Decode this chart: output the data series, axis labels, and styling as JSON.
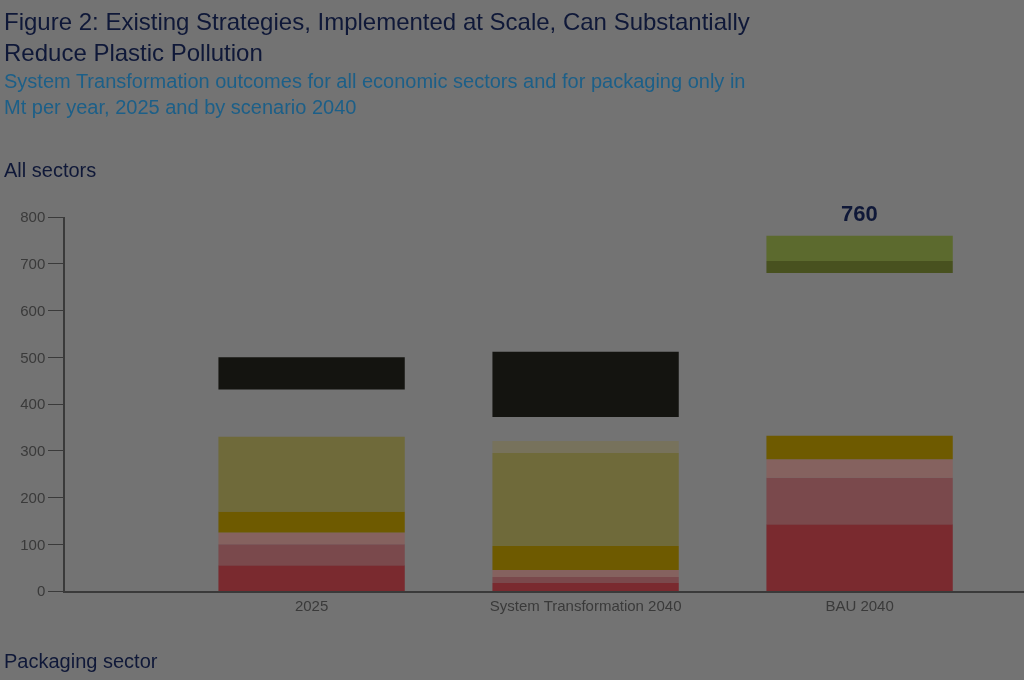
{
  "chart_data": {
    "type": "bar",
    "title": "Figure 2: Existing Strategies, Implemented at Scale, Can Substantially\nReduce Plastic Pollution",
    "subtitle": "System Transformation outcomes for all economic sectors and for packaging only in\nMt per year, 2025 and by scenario 2040",
    "categories": [
      "2025",
      "System Transformation 2040",
      "BAU 2040"
    ],
    "series": [
      {
        "color": "#7a2a2f",
        "values": [
          55,
          17,
          143
        ],
        "base": [
          0,
          0,
          0
        ]
      },
      {
        "color": "#7a494c",
        "values": [
          45,
          13,
          99
        ],
        "base": [
          55,
          17,
          143
        ]
      },
      {
        "color": "#85625f",
        "values": [
          25,
          15,
          40
        ],
        "base": [
          100,
          30,
          242
        ]
      },
      {
        "color": "#6e5a00",
        "values": [
          45,
          51,
          50
        ],
        "base": [
          125,
          45,
          282
        ]
      },
      {
        "color": "#6f6a3a",
        "values": [
          160,
          199,
          null
        ],
        "base": [
          170,
          96,
          null
        ]
      },
      {
        "color": "#77725c",
        "values": [
          null,
          26,
          null
        ],
        "base": [
          null,
          295,
          null
        ]
      },
      {
        "color": "#141410",
        "values": [
          69,
          140,
          null
        ],
        "base": [
          431,
          372,
          null
        ]
      },
      {
        "color": "#48511f",
        "values": [
          null,
          null,
          26
        ],
        "base": [
          null,
          null,
          680
        ]
      },
      {
        "color": "#5c6a2e",
        "values": [
          null,
          null,
          54
        ],
        "base": [
          null,
          null,
          706
        ]
      }
    ],
    "ylim": [
      0,
      800
    ],
    "yticks": [
      0,
      100,
      200,
      300,
      400,
      500,
      600,
      700,
      800
    ],
    "grid": false,
    "annotations": [
      "All sectors",
      {
        "text": "760",
        "x": "BAU 2040",
        "y": 760
      },
      "Packaging sector"
    ]
  }
}
